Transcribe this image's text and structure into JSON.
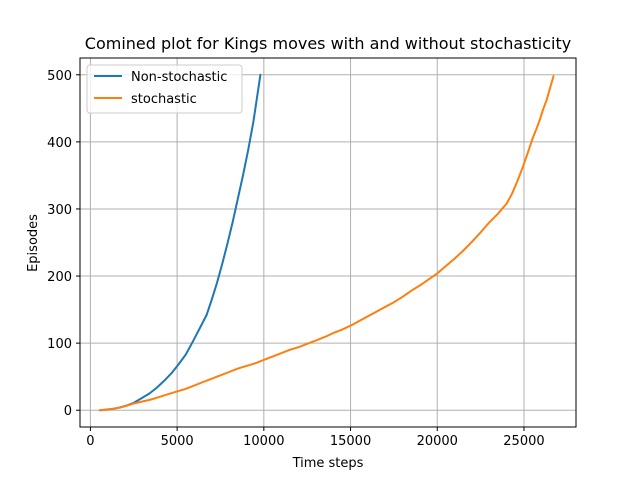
{
  "chart_data": {
    "type": "line",
    "title": "Comined plot for Kings moves with and without stochasticity",
    "xlabel": "Time steps",
    "ylabel": "Episodes",
    "xlim": [
      -600,
      28000
    ],
    "ylim": [
      -25,
      525
    ],
    "xticks": [
      0,
      5000,
      10000,
      15000,
      20000,
      25000
    ],
    "yticks": [
      0,
      100,
      200,
      300,
      400,
      500
    ],
    "grid": true,
    "legend_position": "top-left",
    "series": [
      {
        "name": "Non-stochastic",
        "color": "#1f77b4",
        "x": [
          550,
          900,
          1300,
          1700,
          2100,
          2500,
          2900,
          3400,
          3800,
          4300,
          4700,
          5100,
          5500,
          5900,
          6300,
          6700,
          7000,
          7300,
          7600,
          7900,
          8200,
          8500,
          8800,
          9100,
          9400,
          9800
        ],
        "y": [
          0,
          1,
          2,
          4,
          7,
          11,
          17,
          25,
          33,
          45,
          56,
          69,
          83,
          102,
          122,
          142,
          165,
          190,
          218,
          248,
          280,
          315,
          350,
          388,
          430,
          500
        ]
      },
      {
        "name": "stochastic",
        "color": "#ff7f0e",
        "x": [
          550,
          1000,
          1500,
          2000,
          2500,
          3000,
          3500,
          4000,
          4500,
          5000,
          5500,
          6000,
          6500,
          7000,
          7500,
          8000,
          8500,
          9000,
          9500,
          10000,
          10500,
          11000,
          11500,
          12000,
          12500,
          13000,
          13500,
          14000,
          14500,
          15000,
          15500,
          16000,
          16500,
          17000,
          17500,
          18000,
          18500,
          19000,
          19500,
          20000,
          20500,
          21000,
          21500,
          22000,
          22500,
          23000,
          23500,
          24000,
          24300,
          24600,
          24900,
          25200,
          25500,
          25700,
          25900,
          26100,
          26300,
          26500,
          26700
        ],
        "y": [
          0,
          1,
          3,
          6,
          10,
          13,
          16,
          20,
          24,
          28,
          32,
          37,
          42,
          47,
          52,
          57,
          62,
          66,
          70,
          75,
          80,
          85,
          90,
          94,
          99,
          104,
          109,
          115,
          120,
          126,
          133,
          140,
          147,
          154,
          161,
          169,
          178,
          186,
          195,
          204,
          215,
          226,
          238,
          251,
          265,
          280,
          293,
          308,
          322,
          340,
          360,
          382,
          405,
          418,
          432,
          448,
          462,
          480,
          498
        ]
      }
    ]
  }
}
